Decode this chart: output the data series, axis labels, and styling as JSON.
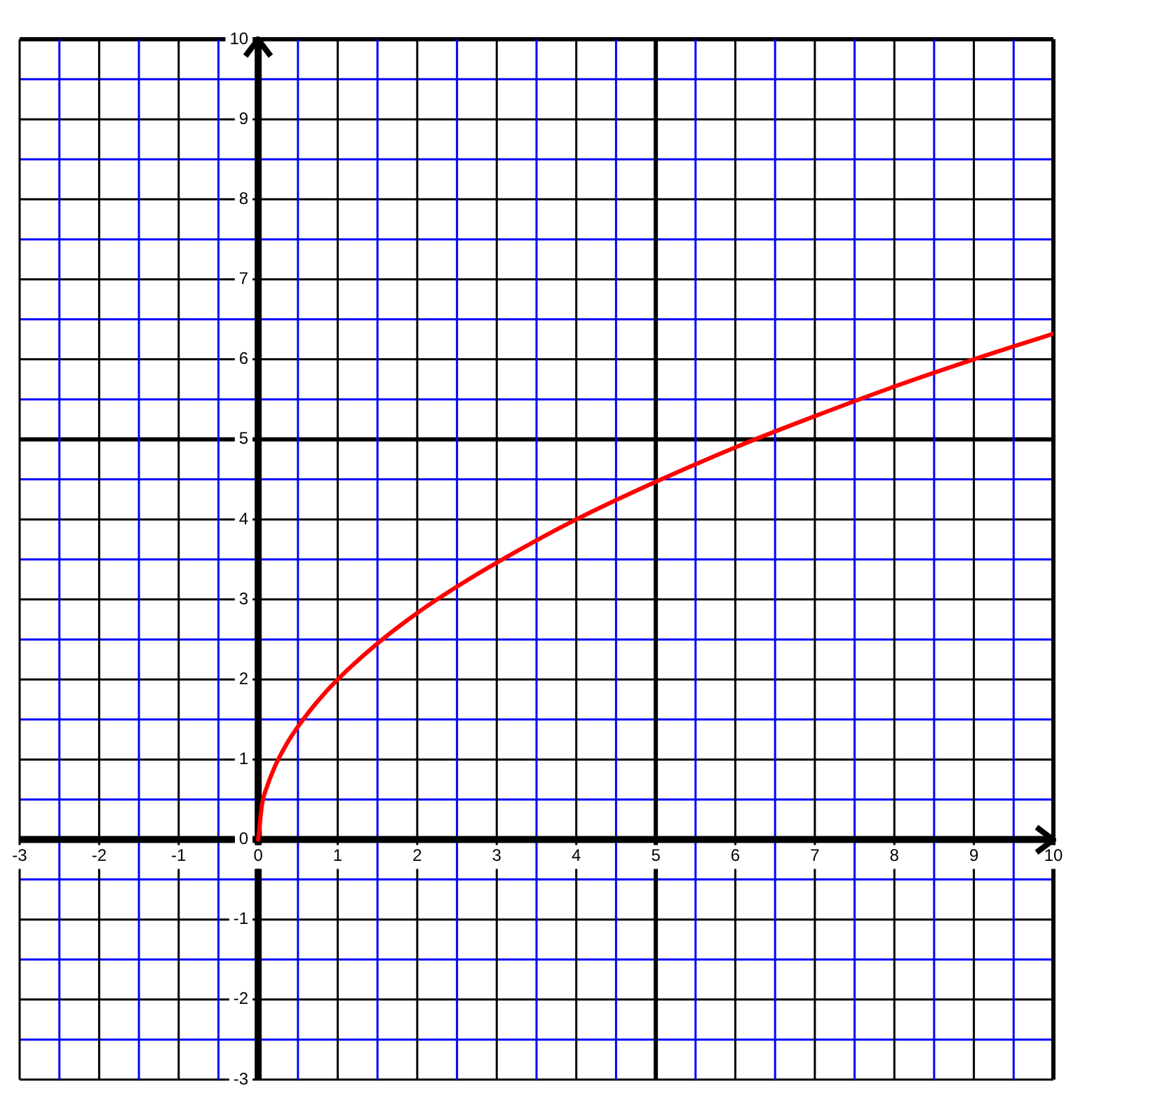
{
  "chart_data": {
    "type": "line",
    "x": [
      0,
      0.05,
      0.1,
      0.2,
      0.35,
      0.5,
      0.75,
      1,
      1.5,
      2,
      2.5,
      3,
      4,
      5,
      6,
      7,
      8,
      9,
      10
    ],
    "series": [
      {
        "color": "#ff0000",
        "values": [
          0,
          0.45,
          0.63,
          0.89,
          1.18,
          1.41,
          1.73,
          2,
          2.45,
          2.83,
          3.16,
          3.46,
          4,
          4.47,
          4.9,
          5.29,
          5.66,
          6,
          6.32
        ]
      }
    ],
    "xlim": [
      -3,
      10
    ],
    "xticks": [
      -3,
      {
        "value": -2.5,
        "label": null
      },
      -2,
      {
        "value": -1.5,
        "label": null
      },
      -1,
      {
        "value": -0.5,
        "label": null
      },
      0,
      {
        "value": 0.5,
        "label": null
      },
      1,
      {
        "value": 1.5,
        "label": null
      },
      2,
      {
        "value": 2.5,
        "label": null
      },
      3,
      {
        "value": 3.5,
        "label": null
      },
      4,
      {
        "value": 4.5,
        "label": null
      },
      5,
      {
        "value": 5.5,
        "label": null
      },
      6,
      {
        "value": 6.5,
        "label": null
      },
      7,
      {
        "value": 7.5,
        "label": null
      },
      8,
      {
        "value": 8.5,
        "label": null
      },
      9,
      {
        "value": 9.5,
        "label": null
      },
      10
    ],
    "ylim": [
      -3,
      10
    ],
    "yticks": [
      -3,
      {
        "value": -2.5,
        "label": null
      },
      -2,
      {
        "value": -1.5,
        "label": null
      },
      -1,
      {
        "value": -0.5,
        "label": null
      },
      0,
      {
        "value": 0.5,
        "label": null
      },
      1,
      {
        "value": 1.5,
        "label": null
      },
      2,
      {
        "value": 2.5,
        "label": null
      },
      3,
      {
        "value": 3.5,
        "label": null
      },
      4,
      {
        "value": 4.5,
        "label": null
      },
      5,
      {
        "value": 5.5,
        "label": null
      },
      6,
      {
        "value": 6.5,
        "label": null
      },
      7,
      {
        "value": 7.5,
        "label": null
      },
      8,
      {
        "value": 8.5,
        "label": null
      },
      9,
      {
        "value": 9.5,
        "label": null
      },
      10
    ],
    "grid": true,
    "marker": "none",
    "line_style": "solid",
    "legend": false
  }
}
